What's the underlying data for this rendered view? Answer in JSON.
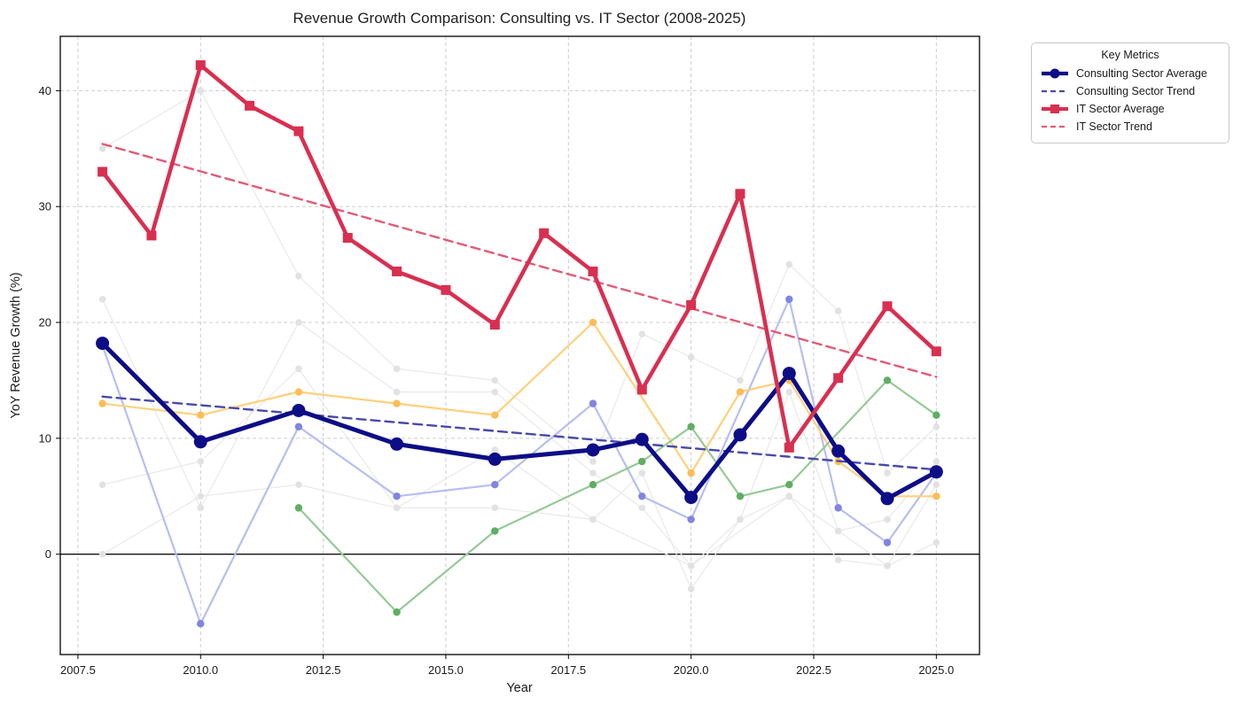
{
  "chart_data": {
    "type": "line",
    "title": "Revenue Growth Comparison: Consulting vs. IT Sector (2008-2025)",
    "xlabel": "Year",
    "ylabel": "YoY Revenue Growth (%)",
    "xlim": [
      2007.14,
      2025.88
    ],
    "ylim": [
      -8.66,
      44.69
    ],
    "x_tick_labels": [
      "2007.5",
      "2010.0",
      "2012.5",
      "2015.0",
      "2017.5",
      "2020.0",
      "2022.5",
      "2025.0"
    ],
    "y_tick_labels": [
      "0",
      "10",
      "20",
      "30",
      "40"
    ],
    "grid": true,
    "zero_line": true,
    "grid_color": "#cdcdcd",
    "legend": {
      "title": "Key Metrics",
      "position": "outside-right",
      "entries": [
        "Consulting Sector Average",
        "Consulting Sector Trend",
        "IT Sector Average",
        "IT Sector Trend"
      ]
    },
    "series": [
      {
        "name": "Consulting Sector Average",
        "color": "#0d0d87",
        "line": "solid",
        "width": 5,
        "marker": "circle",
        "marker_size": 7.5,
        "x": [
          2008,
          2010,
          2012,
          2014,
          2016,
          2018,
          2019,
          2020,
          2021,
          2022,
          2023,
          2024,
          2025
        ],
        "y": [
          18.2,
          9.7,
          12.4,
          9.5,
          8.2,
          9.0,
          9.9,
          4.9,
          10.3,
          15.6,
          8.9,
          4.8,
          7.1
        ]
      },
      {
        "name": "Consulting Sector Trend",
        "color": "#4949ab",
        "line": "dashed",
        "width": 2.4,
        "x": [
          2008,
          2025
        ],
        "y": [
          13.6,
          7.3
        ]
      },
      {
        "name": "IT Sector Average",
        "color": "#d92f50",
        "line": "solid",
        "width": 4.5,
        "marker": "square",
        "marker_size": 5.5,
        "x": [
          2008,
          2009,
          2010,
          2011,
          2012,
          2013,
          2014,
          2015,
          2016,
          2017,
          2018,
          2019,
          2020,
          2021,
          2022,
          2023,
          2024,
          2025
        ],
        "y": [
          33.0,
          27.5,
          42.2,
          38.7,
          36.5,
          27.3,
          24.4,
          22.8,
          19.8,
          27.7,
          24.4,
          14.2,
          21.5,
          31.1,
          9.2,
          15.2,
          21.4,
          17.5
        ]
      },
      {
        "name": "IT Sector Trend",
        "color": "#e25a76",
        "line": "dashed",
        "width": 2.4,
        "x": [
          2008,
          2025
        ],
        "y": [
          35.4,
          15.3
        ]
      }
    ],
    "background_series": [
      {
        "color": "#e9e9e9",
        "marker_color": "#e2e2e2",
        "width": 1.2,
        "marker": "circle",
        "marker_size": 3.8,
        "x": [
          2008,
          2010,
          2012,
          2014,
          2016,
          2018,
          2019,
          2020,
          2021,
          2022,
          2023,
          2024,
          2025
        ],
        "y": [
          35,
          40,
          24,
          16,
          15,
          8,
          19,
          17,
          15,
          25,
          21,
          7,
          11
        ]
      },
      {
        "color": "#e9e9e9",
        "marker_color": "#e2e2e2",
        "width": 1.2,
        "marker": "circle",
        "marker_size": 3.8,
        "x": [
          2008,
          2010,
          2012,
          2014,
          2016,
          2018,
          2019,
          2020,
          2021,
          2022,
          2023,
          2024,
          2025
        ],
        "y": [
          22,
          4,
          20,
          14,
          14,
          7,
          4,
          -1,
          3,
          14,
          2,
          3,
          8
        ]
      },
      {
        "color": "#e9e9e9",
        "marker_color": "#e2e2e2",
        "width": 1.2,
        "marker": "circle",
        "marker_size": 3.8,
        "x": [
          2008,
          2010,
          2012,
          2014,
          2016,
          2018,
          2019,
          2020,
          2021,
          2022,
          2023,
          2024,
          2025
        ],
        "y": [
          6,
          8,
          16,
          4,
          9,
          3,
          7,
          -3,
          3,
          5,
          -0.5,
          -1,
          6
        ]
      },
      {
        "color": "#e9e9e9",
        "marker_color": "#e2e2e2",
        "width": 1.2,
        "marker": "circle",
        "marker_size": 3.8,
        "x": [
          2008,
          2010,
          2012,
          2014,
          2016,
          2018,
          2020,
          2022,
          2023,
          2024,
          2025
        ],
        "y": [
          0,
          5,
          6,
          4,
          4,
          3,
          -1,
          5,
          2,
          -1,
          1
        ]
      },
      {
        "color": "#b7bef3",
        "marker_color": "#8085e2",
        "width": 2.2,
        "marker": "circle",
        "marker_size": 4.2,
        "x": [
          2008,
          2010,
          2012,
          2014,
          2016,
          2018,
          2019,
          2020,
          2022,
          2023,
          2024,
          2025
        ],
        "y": [
          18,
          -6,
          11,
          5,
          6,
          13,
          5,
          3,
          22,
          4,
          1,
          7
        ]
      },
      {
        "color": "#ffd17c",
        "marker_color": "#fdbd57",
        "width": 2.2,
        "marker": "circle",
        "marker_size": 4.2,
        "x": [
          2008,
          2010,
          2012,
          2014,
          2016,
          2018,
          2020,
          2021,
          2022,
          2023,
          2024,
          2025
        ],
        "y": [
          13,
          12,
          14,
          13,
          12,
          20,
          7,
          14,
          15,
          8,
          5,
          5
        ]
      },
      {
        "color": "#96ca96",
        "marker_color": "#5fae63",
        "width": 2.2,
        "marker": "circle",
        "marker_size": 4.2,
        "x": [
          2012,
          2014,
          2016,
          2018,
          2019,
          2020,
          2021,
          2022,
          2024,
          2025
        ],
        "y": [
          4,
          -5,
          2,
          6,
          8,
          11,
          5,
          6,
          15,
          12
        ]
      }
    ]
  }
}
